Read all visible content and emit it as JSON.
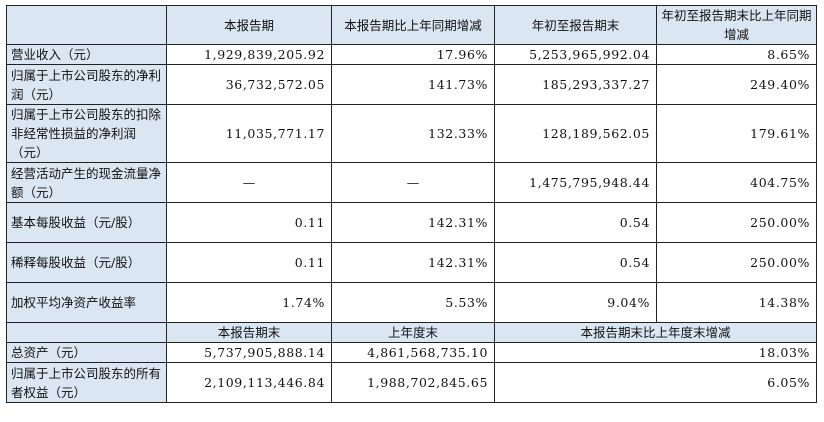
{
  "header": {
    "col1": "本报告期",
    "col2": "本报告期比上年同期增减",
    "col3": "年初至报告期末",
    "col4": "年初至报告期末比上年同期增减"
  },
  "rows": [
    {
      "label": "营业收入（元）",
      "v1": "1,929,839,205.92",
      "v2": "17.96%",
      "v3": "5,253,965,992.04",
      "v4": "8.65%"
    },
    {
      "label": "归属于上市公司股东的净利润（元）",
      "v1": "36,732,572.05",
      "v2": "141.73%",
      "v3": "185,293,337.27",
      "v4": "249.40%"
    },
    {
      "label": "归属于上市公司股东的扣除非经常性损益的净利润（元）",
      "v1": "11,035,771.17",
      "v2": "132.33%",
      "v3": "128,189,562.05",
      "v4": "179.61%"
    },
    {
      "label": "经营活动产生的现金流量净额（元）",
      "v1": "—",
      "v2": "—",
      "v3": "1,475,795,948.44",
      "v4": "404.75%"
    },
    {
      "label": "基本每股收益（元/股）",
      "v1": "0.11",
      "v2": "142.31%",
      "v3": "0.54",
      "v4": "250.00%"
    },
    {
      "label": "稀释每股收益（元/股）",
      "v1": "0.11",
      "v2": "142.31%",
      "v3": "0.54",
      "v4": "250.00%"
    },
    {
      "label": "加权平均净资产收益率",
      "v1": "1.74%",
      "v2": "5.53%",
      "v3": "9.04%",
      "v4": "14.38%"
    }
  ],
  "subheader": {
    "col1": "本报告期末",
    "col2": "上年度末",
    "col3": "本报告期末比上年度末增减"
  },
  "rows2": [
    {
      "label": "总资产（元）",
      "v1": "5,737,905,888.14",
      "v2": "4,861,568,735.10",
      "v3": "18.03%"
    },
    {
      "label": "归属于上市公司股东的所有者权益（元）",
      "v1": "2,109,113,446.84",
      "v2": "1,988,702,845.65",
      "v3": "6.05%"
    }
  ]
}
